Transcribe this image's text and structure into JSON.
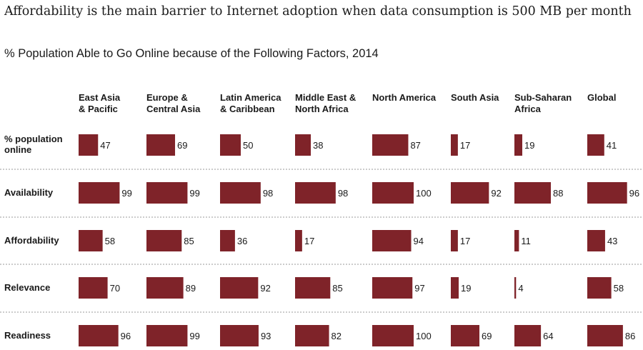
{
  "title": "Affordability is the main barrier to Internet adoption when data consumption is 500 MB per month",
  "subtitle": "% Population Able to Go Online because of the Following Factors, 2014",
  "chart_data": {
    "type": "bar",
    "title": "Affordability is the main barrier to Internet adoption when data consumption is 500 MB per month",
    "subtitle": "% Population Able to Go Online because of the Following Factors, 2014",
    "bar_color": "#7f2329",
    "xlim": [
      0,
      100
    ],
    "categories": [
      [
        "East Asia",
        "& Pacific"
      ],
      [
        "Europe &",
        "Central Asia"
      ],
      [
        "Latin America",
        "& Caribbean"
      ],
      [
        "Middle East &",
        "North Africa"
      ],
      [
        "North America"
      ],
      [
        "South Asia"
      ],
      [
        "Sub-Saharan",
        "Africa"
      ],
      [
        "Global"
      ]
    ],
    "series": [
      {
        "name": [
          "% population",
          "online"
        ],
        "values": [
          47,
          69,
          50,
          38,
          87,
          17,
          19,
          41
        ]
      },
      {
        "name": [
          "Availability"
        ],
        "values": [
          99,
          99,
          98,
          98,
          100,
          92,
          88,
          96
        ]
      },
      {
        "name": [
          "Affordability"
        ],
        "values": [
          58,
          85,
          36,
          17,
          94,
          17,
          11,
          43
        ]
      },
      {
        "name": [
          "Relevance"
        ],
        "values": [
          70,
          89,
          92,
          85,
          97,
          19,
          4,
          58
        ]
      },
      {
        "name": [
          "Readiness"
        ],
        "values": [
          96,
          99,
          93,
          82,
          100,
          69,
          64,
          86
        ]
      }
    ]
  }
}
